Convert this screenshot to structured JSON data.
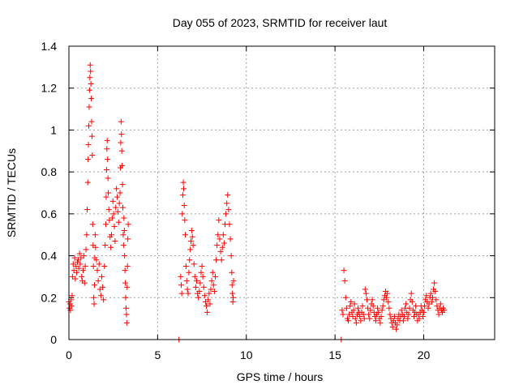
{
  "chart_data": {
    "type": "scatter",
    "title": "Day 055 of 2023, SRMTID for receiver laut",
    "xlabel": "GPS time / hours",
    "ylabel": "SRMTID / TECUs",
    "xlim": [
      0,
      24
    ],
    "ylim": [
      0,
      1.4
    ],
    "xticks": [
      0,
      5,
      10,
      15,
      20
    ],
    "yticks": [
      0,
      0.2,
      0.4,
      0.6,
      0.8,
      1,
      1.2,
      1.4
    ],
    "xtick_labels": [
      "0",
      "5",
      "10",
      "15",
      "20"
    ],
    "ytick_labels": [
      "0",
      "0.2",
      "0.4",
      "0.6",
      "0.8",
      "1",
      "1.2",
      "1.4"
    ],
    "grid": true,
    "marker": "plus",
    "color": "#ff0000",
    "series": [
      {
        "name": "SRMTID",
        "points": [
          [
            0.0,
            0.18
          ],
          [
            0.03,
            0.15
          ],
          [
            0.06,
            0.17
          ],
          [
            0.09,
            0.14
          ],
          [
            0.12,
            0.19
          ],
          [
            0.15,
            0.16
          ],
          [
            0.18,
            0.21
          ],
          [
            0.2,
            0.3
          ],
          [
            0.24,
            0.36
          ],
          [
            0.28,
            0.33
          ],
          [
            0.32,
            0.39
          ],
          [
            0.36,
            0.29
          ],
          [
            0.4,
            0.35
          ],
          [
            0.44,
            0.32
          ],
          [
            0.48,
            0.37
          ],
          [
            0.52,
            0.38
          ],
          [
            0.56,
            0.34
          ],
          [
            0.6,
            0.41
          ],
          [
            0.64,
            0.36
          ],
          [
            0.68,
            0.39
          ],
          [
            0.72,
            0.3
          ],
          [
            0.76,
            0.28
          ],
          [
            0.8,
            0.33
          ],
          [
            0.84,
            0.4
          ],
          [
            0.88,
            0.27
          ],
          [
            0.92,
            0.35
          ],
          [
            0.96,
            0.43
          ],
          [
            1.0,
            0.5
          ],
          [
            1.03,
            0.62
          ],
          [
            1.06,
            0.75
          ],
          [
            1.08,
            0.86
          ],
          [
            1.1,
            0.93
          ],
          [
            1.12,
            1.02
          ],
          [
            1.14,
            1.11
          ],
          [
            1.16,
            1.19
          ],
          [
            1.18,
            1.25
          ],
          [
            1.2,
            1.31
          ],
          [
            1.22,
            1.28
          ],
          [
            1.24,
            1.22
          ],
          [
            1.26,
            1.15
          ],
          [
            1.28,
            1.04
          ],
          [
            1.3,
            0.97
          ],
          [
            1.32,
            0.88
          ],
          [
            1.34,
            0.55
          ],
          [
            1.36,
            0.45
          ],
          [
            1.38,
            0.35
          ],
          [
            1.4,
            0.2
          ],
          [
            1.42,
            0.17
          ],
          [
            1.44,
            0.26
          ],
          [
            1.46,
            0.39
          ],
          [
            1.48,
            0.5
          ],
          [
            1.5,
            0.44
          ],
          [
            1.55,
            0.38
          ],
          [
            1.6,
            0.33
          ],
          [
            1.65,
            0.28
          ],
          [
            1.7,
            0.36
          ],
          [
            1.75,
            0.24
          ],
          [
            1.8,
            0.21
          ],
          [
            1.85,
            0.3
          ],
          [
            1.9,
            0.25
          ],
          [
            1.95,
            0.19
          ],
          [
            2.0,
            0.35
          ],
          [
            2.04,
            0.45
          ],
          [
            2.08,
            0.55
          ],
          [
            2.1,
            0.68
          ],
          [
            2.12,
            0.81
          ],
          [
            2.14,
            0.91
          ],
          [
            2.16,
            0.95
          ],
          [
            2.18,
            0.86
          ],
          [
            2.2,
            0.77
          ],
          [
            2.22,
            0.7
          ],
          [
            2.25,
            0.62
          ],
          [
            2.28,
            0.57
          ],
          [
            2.32,
            0.49
          ],
          [
            2.36,
            0.44
          ],
          [
            2.4,
            0.5
          ],
          [
            2.44,
            0.58
          ],
          [
            2.48,
            0.66
          ],
          [
            2.52,
            0.6
          ],
          [
            2.56,
            0.54
          ],
          [
            2.6,
            0.47
          ],
          [
            2.64,
            0.63
          ],
          [
            2.68,
            0.72
          ],
          [
            2.72,
            0.68
          ],
          [
            2.76,
            0.61
          ],
          [
            2.8,
            0.56
          ],
          [
            2.84,
            0.65
          ],
          [
            2.88,
            0.7
          ],
          [
            2.9,
            0.82
          ],
          [
            2.92,
            0.94
          ],
          [
            2.94,
            1.04
          ],
          [
            2.96,
            0.98
          ],
          [
            2.98,
            0.9
          ],
          [
            3.0,
            0.83
          ],
          [
            3.02,
            0.74
          ],
          [
            3.04,
            0.63
          ],
          [
            3.06,
            0.5
          ],
          [
            3.08,
            0.45
          ],
          [
            3.1,
            0.58
          ],
          [
            3.12,
            0.52
          ],
          [
            3.14,
            0.4
          ],
          [
            3.16,
            0.33
          ],
          [
            3.18,
            0.27
          ],
          [
            3.2,
            0.2
          ],
          [
            3.22,
            0.15
          ],
          [
            3.24,
            0.12
          ],
          [
            3.26,
            0.08
          ],
          [
            3.28,
            0.25
          ],
          [
            3.3,
            0.35
          ],
          [
            3.32,
            0.48
          ],
          [
            3.34,
            0.55
          ],
          [
            6.2,
            0.0
          ],
          [
            6.3,
            0.3
          ],
          [
            6.33,
            0.26
          ],
          [
            6.36,
            0.22
          ],
          [
            6.39,
            0.6
          ],
          [
            6.42,
            0.69
          ],
          [
            6.45,
            0.75
          ],
          [
            6.47,
            0.72
          ],
          [
            6.5,
            0.64
          ],
          [
            6.53,
            0.57
          ],
          [
            6.56,
            0.5
          ],
          [
            6.6,
            0.35
          ],
          [
            6.64,
            0.28
          ],
          [
            6.68,
            0.24
          ],
          [
            6.72,
            0.22
          ],
          [
            6.76,
            0.32
          ],
          [
            6.8,
            0.38
          ],
          [
            6.84,
            0.43
          ],
          [
            6.88,
            0.47
          ],
          [
            6.92,
            0.52
          ],
          [
            6.96,
            0.49
          ],
          [
            7.0,
            0.45
          ],
          [
            7.05,
            0.36
          ],
          [
            7.1,
            0.3
          ],
          [
            7.15,
            0.25
          ],
          [
            7.2,
            0.28
          ],
          [
            7.25,
            0.22
          ],
          [
            7.3,
            0.2
          ],
          [
            7.35,
            0.23
          ],
          [
            7.4,
            0.27
          ],
          [
            7.45,
            0.32
          ],
          [
            7.5,
            0.35
          ],
          [
            7.55,
            0.3
          ],
          [
            7.6,
            0.25
          ],
          [
            7.65,
            0.21
          ],
          [
            7.7,
            0.18
          ],
          [
            7.75,
            0.16
          ],
          [
            7.8,
            0.13
          ],
          [
            7.85,
            0.19
          ],
          [
            7.9,
            0.22
          ],
          [
            7.95,
            0.17
          ],
          [
            8.0,
            0.24
          ],
          [
            8.05,
            0.28
          ],
          [
            8.1,
            0.32
          ],
          [
            8.15,
            0.26
          ],
          [
            8.2,
            0.23
          ],
          [
            8.25,
            0.3
          ],
          [
            8.3,
            0.38
          ],
          [
            8.35,
            0.45
          ],
          [
            8.4,
            0.5
          ],
          [
            8.45,
            0.57
          ],
          [
            8.5,
            0.48
          ],
          [
            8.55,
            0.42
          ],
          [
            8.6,
            0.38
          ],
          [
            8.65,
            0.44
          ],
          [
            8.7,
            0.5
          ],
          [
            8.75,
            0.46
          ],
          [
            8.8,
            0.55
          ],
          [
            8.85,
            0.6
          ],
          [
            8.9,
            0.65
          ],
          [
            8.95,
            0.69
          ],
          [
            9.0,
            0.62
          ],
          [
            9.05,
            0.55
          ],
          [
            9.1,
            0.48
          ],
          [
            9.15,
            0.4
          ],
          [
            9.18,
            0.32
          ],
          [
            9.2,
            0.26
          ],
          [
            9.22,
            0.22
          ],
          [
            9.24,
            0.18
          ],
          [
            9.26,
            0.2
          ],
          [
            9.28,
            0.28
          ],
          [
            15.35,
            0.0
          ],
          [
            15.4,
            0.14
          ],
          [
            15.45,
            0.12
          ],
          [
            15.5,
            0.33
          ],
          [
            15.55,
            0.28
          ],
          [
            15.6,
            0.2
          ],
          [
            15.65,
            0.15
          ],
          [
            15.7,
            0.1
          ],
          [
            15.75,
            0.09
          ],
          [
            15.8,
            0.12
          ],
          [
            15.85,
            0.16
          ],
          [
            15.9,
            0.18
          ],
          [
            15.95,
            0.13
          ],
          [
            16.0,
            0.11
          ],
          [
            16.05,
            0.14
          ],
          [
            16.1,
            0.17
          ],
          [
            16.15,
            0.1
          ],
          [
            16.2,
            0.08
          ],
          [
            16.25,
            0.12
          ],
          [
            16.3,
            0.15
          ],
          [
            16.35,
            0.13
          ],
          [
            16.4,
            0.11
          ],
          [
            16.45,
            0.09
          ],
          [
            16.5,
            0.13
          ],
          [
            16.55,
            0.16
          ],
          [
            16.6,
            0.12
          ],
          [
            16.65,
            0.1
          ],
          [
            16.7,
            0.24
          ],
          [
            16.75,
            0.22
          ],
          [
            16.8,
            0.19
          ],
          [
            16.85,
            0.15
          ],
          [
            16.9,
            0.12
          ],
          [
            16.95,
            0.1
          ],
          [
            17.0,
            0.14
          ],
          [
            17.05,
            0.17
          ],
          [
            17.1,
            0.19
          ],
          [
            17.15,
            0.16
          ],
          [
            17.2,
            0.13
          ],
          [
            17.25,
            0.11
          ],
          [
            17.3,
            0.09
          ],
          [
            17.35,
            0.12
          ],
          [
            17.4,
            0.15
          ],
          [
            17.45,
            0.13
          ],
          [
            17.5,
            0.1
          ],
          [
            17.55,
            0.08
          ],
          [
            17.6,
            0.11
          ],
          [
            17.65,
            0.14
          ],
          [
            17.7,
            0.16
          ],
          [
            17.75,
            0.19
          ],
          [
            17.8,
            0.21
          ],
          [
            17.85,
            0.23
          ],
          [
            17.9,
            0.2
          ],
          [
            17.95,
            0.22
          ],
          [
            18.0,
            0.18
          ],
          [
            18.05,
            0.15
          ],
          [
            18.1,
            0.12
          ],
          [
            18.15,
            0.1
          ],
          [
            18.2,
            0.08
          ],
          [
            18.25,
            0.06
          ],
          [
            18.3,
            0.09
          ],
          [
            18.35,
            0.11
          ],
          [
            18.4,
            0.08
          ],
          [
            18.45,
            0.05
          ],
          [
            18.5,
            0.07
          ],
          [
            18.55,
            0.1
          ],
          [
            18.6,
            0.12
          ],
          [
            18.65,
            0.09
          ],
          [
            18.7,
            0.11
          ],
          [
            18.75,
            0.14
          ],
          [
            18.8,
            0.12
          ],
          [
            18.85,
            0.09
          ],
          [
            18.9,
            0.11
          ],
          [
            18.95,
            0.15
          ],
          [
            19.0,
            0.17
          ],
          [
            19.05,
            0.13
          ],
          [
            19.1,
            0.1
          ],
          [
            19.15,
            0.12
          ],
          [
            19.2,
            0.15
          ],
          [
            19.25,
            0.19
          ],
          [
            19.3,
            0.22
          ],
          [
            19.35,
            0.18
          ],
          [
            19.4,
            0.14
          ],
          [
            19.45,
            0.11
          ],
          [
            19.5,
            0.13
          ],
          [
            19.55,
            0.16
          ],
          [
            19.6,
            0.12
          ],
          [
            19.65,
            0.09
          ],
          [
            19.7,
            0.12
          ],
          [
            19.75,
            0.1
          ],
          [
            19.8,
            0.13
          ],
          [
            19.85,
            0.16
          ],
          [
            19.9,
            0.14
          ],
          [
            19.95,
            0.11
          ],
          [
            20.0,
            0.13
          ],
          [
            20.05,
            0.16
          ],
          [
            20.1,
            0.19
          ],
          [
            20.15,
            0.21
          ],
          [
            20.2,
            0.18
          ],
          [
            20.25,
            0.15
          ],
          [
            20.3,
            0.17
          ],
          [
            20.35,
            0.2
          ],
          [
            20.4,
            0.22
          ],
          [
            20.45,
            0.18
          ],
          [
            20.5,
            0.2
          ],
          [
            20.55,
            0.24
          ],
          [
            20.6,
            0.27
          ],
          [
            20.65,
            0.23
          ],
          [
            20.7,
            0.19
          ],
          [
            20.75,
            0.16
          ],
          [
            20.8,
            0.14
          ],
          [
            20.85,
            0.12
          ],
          [
            20.9,
            0.15
          ],
          [
            20.95,
            0.17
          ],
          [
            21.0,
            0.14
          ],
          [
            21.05,
            0.13
          ],
          [
            21.1,
            0.15
          ],
          [
            21.15,
            0.14
          ]
        ]
      }
    ]
  }
}
